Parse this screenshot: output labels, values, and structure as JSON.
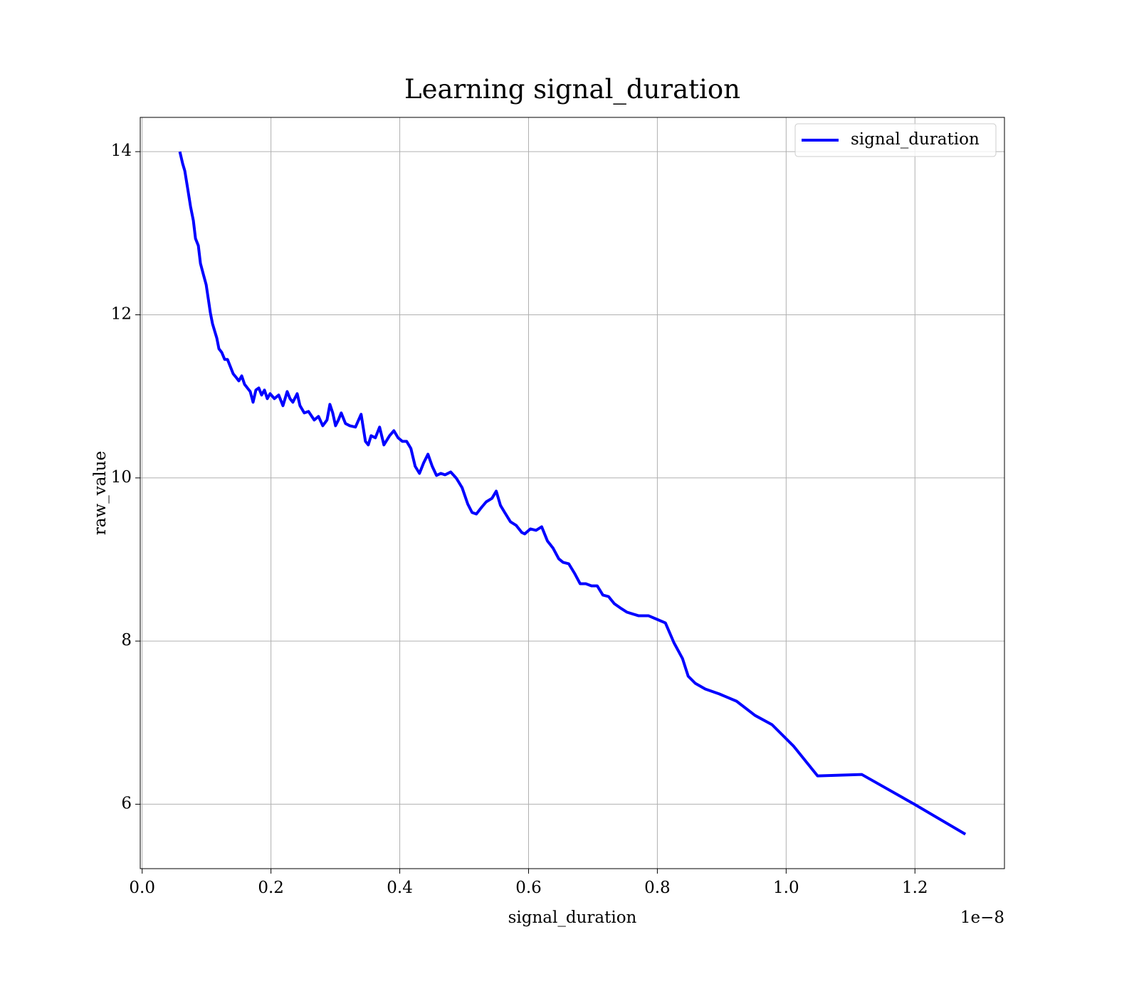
{
  "chart_data": {
    "type": "line",
    "title": "Learning signal_duration",
    "xlabel": "signal_duration",
    "ylabel": "raw_value",
    "x_offset_label": "1e−8",
    "xlim": [
      -0.003,
      1.339
    ],
    "ylim": [
      5.21,
      14.42
    ],
    "xticks": [
      {
        "value": 0,
        "label": "0.0"
      },
      0.2,
      0.4,
      0.6,
      0.8,
      {
        "value": 1,
        "label": "1.0"
      },
      1.2
    ],
    "yticks": [
      6,
      8,
      10,
      12,
      14
    ],
    "grid": true,
    "legend": "upper right",
    "x": [
      0.0585,
      0.0629,
      0.0662,
      0.0707,
      0.0751,
      0.0795,
      0.0828,
      0.0872,
      0.0905,
      0.0949,
      0.0994,
      0.1027,
      0.106,
      0.1093,
      0.1126,
      0.1159,
      0.1192,
      0.1236,
      0.1281,
      0.1325,
      0.1369,
      0.1413,
      0.1457,
      0.1501,
      0.1546,
      0.159,
      0.1634,
      0.1678,
      0.1722,
      0.1766,
      0.1811,
      0.1855,
      0.1899,
      0.1943,
      0.1987,
      0.2053,
      0.212,
      0.2186,
      0.2252,
      0.2296,
      0.234,
      0.2407,
      0.2451,
      0.2517,
      0.2583,
      0.2672,
      0.2738,
      0.2804,
      0.287,
      0.2915,
      0.2959,
      0.3003,
      0.3047,
      0.3091,
      0.3157,
      0.3224,
      0.3312,
      0.34,
      0.3467,
      0.3511,
      0.3555,
      0.3621,
      0.3687,
      0.3754,
      0.3842,
      0.3908,
      0.3974,
      0.4041,
      0.4107,
      0.4173,
      0.4239,
      0.4306,
      0.4372,
      0.4438,
      0.4504,
      0.4571,
      0.4637,
      0.4703,
      0.4791,
      0.488,
      0.4968,
      0.5056,
      0.5123,
      0.5189,
      0.5277,
      0.5343,
      0.5432,
      0.5498,
      0.5564,
      0.563,
      0.5719,
      0.5807,
      0.5895,
      0.594,
      0.6028,
      0.6116,
      0.6204,
      0.6293,
      0.6381,
      0.6469,
      0.6536,
      0.6624,
      0.6712,
      0.6801,
      0.6889,
      0.6977,
      0.7066,
      0.7154,
      0.7242,
      0.7331,
      0.7441,
      0.7529,
      0.7706,
      0.7861,
      0.7993,
      0.8125,
      0.8258,
      0.839,
      0.8479,
      0.8589,
      0.8744,
      0.8965,
      0.923,
      0.9516,
      0.9781,
      1.0113,
      1.0488,
      1.1173,
      1.199,
      1.2784
    ],
    "series": [
      {
        "name": "signal_duration",
        "color": "#0000ff",
        "values": [
          14.0,
          13.852,
          13.764,
          13.546,
          13.328,
          13.154,
          12.935,
          12.848,
          12.63,
          12.499,
          12.368,
          12.194,
          12.019,
          11.888,
          11.801,
          11.714,
          11.583,
          11.539,
          11.452,
          11.452,
          11.365,
          11.277,
          11.234,
          11.19,
          11.251,
          11.147,
          11.103,
          11.059,
          10.928,
          11.077,
          11.103,
          11.016,
          11.077,
          10.972,
          11.033,
          10.972,
          11.016,
          10.885,
          11.059,
          10.972,
          10.928,
          11.033,
          10.885,
          10.797,
          10.815,
          10.71,
          10.754,
          10.64,
          10.71,
          10.902,
          10.797,
          10.64,
          10.71,
          10.797,
          10.667,
          10.64,
          10.623,
          10.78,
          10.448,
          10.405,
          10.518,
          10.492,
          10.623,
          10.405,
          10.518,
          10.579,
          10.492,
          10.448,
          10.448,
          10.361,
          10.143,
          10.056,
          10.187,
          10.291,
          10.143,
          10.03,
          10.056,
          10.038,
          10.073,
          9.995,
          9.881,
          9.68,
          9.576,
          9.558,
          9.646,
          9.707,
          9.75,
          9.838,
          9.663,
          9.576,
          9.462,
          9.419,
          9.331,
          9.314,
          9.375,
          9.358,
          9.401,
          9.227,
          9.139,
          9.009,
          8.965,
          8.948,
          8.834,
          8.703,
          8.703,
          8.677,
          8.677,
          8.564,
          8.546,
          8.459,
          8.398,
          8.354,
          8.311,
          8.311,
          8.267,
          8.223,
          7.979,
          7.787,
          7.569,
          7.482,
          7.412,
          7.351,
          7.263,
          7.089,
          6.975,
          6.714,
          6.347,
          6.365,
          6.0,
          5.632
        ]
      }
    ]
  }
}
